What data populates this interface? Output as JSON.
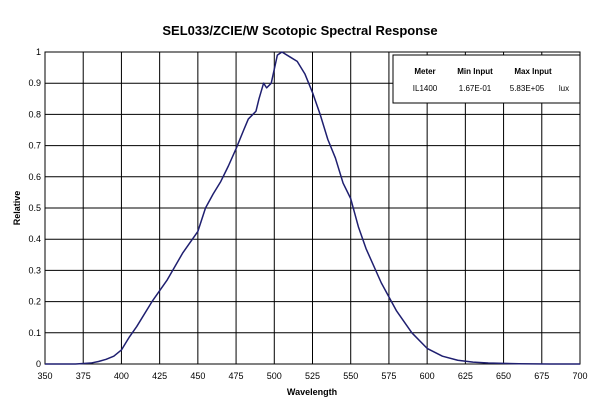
{
  "chart_data": {
    "type": "line",
    "title": "SEL033/ZCIE/W Scotopic Spectral Response",
    "xlabel": "Wavelength",
    "ylabel": "Relative",
    "xlim": [
      350,
      700
    ],
    "ylim": [
      0,
      1
    ],
    "x_ticks": [
      "350",
      "375",
      "400",
      "425",
      "450",
      "475",
      "500",
      "525",
      "550",
      "575",
      "600",
      "625",
      "650",
      "675",
      "700"
    ],
    "y_ticks": [
      "0",
      "0.1",
      "0.2",
      "0.3",
      "0.4",
      "0.5",
      "0.6",
      "0.7",
      "0.8",
      "0.9",
      "1"
    ],
    "grid": true,
    "line_color": "#1f1f70",
    "series": [
      {
        "x": [
          350,
          370,
          380,
          385,
          390,
          395,
          400,
          405,
          410,
          420,
          430,
          440,
          445,
          450,
          455,
          460,
          465,
          470,
          475,
          480,
          483,
          485,
          488,
          490,
          493,
          495,
          498,
          500,
          502,
          505,
          510,
          515,
          520,
          525,
          530,
          535,
          540,
          545,
          550,
          555,
          560,
          570,
          580,
          590,
          600,
          610,
          620,
          630,
          640,
          650,
          660,
          670,
          680,
          700
        ],
        "y": [
          0,
          0,
          0.003,
          0.008,
          0.015,
          0.025,
          0.045,
          0.085,
          0.12,
          0.2,
          0.27,
          0.355,
          0.39,
          0.425,
          0.5,
          0.545,
          0.585,
          0.635,
          0.69,
          0.75,
          0.785,
          0.795,
          0.81,
          0.85,
          0.9,
          0.885,
          0.9,
          0.945,
          0.99,
          1.0,
          0.985,
          0.97,
          0.93,
          0.87,
          0.8,
          0.72,
          0.66,
          0.58,
          0.53,
          0.44,
          0.37,
          0.26,
          0.17,
          0.1,
          0.05,
          0.025,
          0.012,
          0.006,
          0.003,
          0.002,
          0.001,
          0.0005,
          0,
          0
        ]
      }
    ]
  },
  "legend_box": {
    "headers": [
      "Meter",
      "Min Input",
      "Max Input"
    ],
    "values": [
      "IL1400",
      "1.67E-01",
      "5.83E+05",
      "lux"
    ]
  }
}
